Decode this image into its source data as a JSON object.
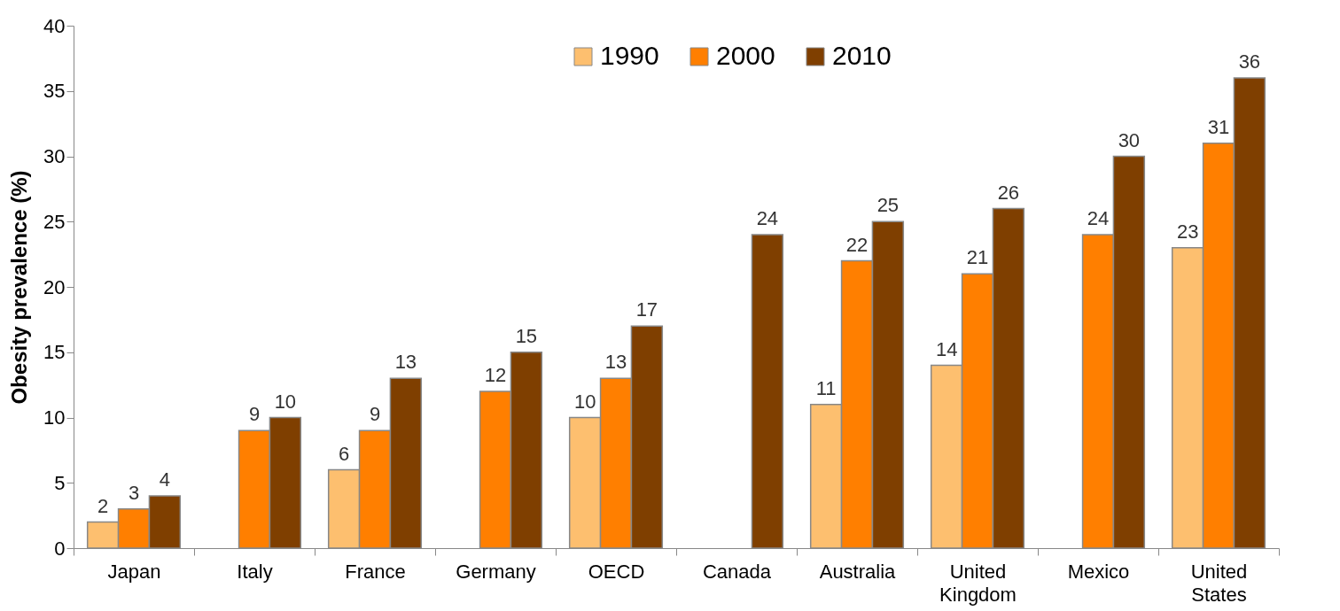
{
  "chart_data": {
    "type": "bar",
    "ylabel": "Obesity prevalence (%)",
    "categories": [
      "Japan",
      "Italy",
      "France",
      "Germany",
      "OECD",
      "Canada",
      "Australia",
      "United Kingdom",
      "Mexico",
      "United States"
    ],
    "series": [
      {
        "name": "1990",
        "color": "#fdbf6f",
        "values": [
          2,
          null,
          6,
          null,
          10,
          null,
          11,
          14,
          null,
          23
        ]
      },
      {
        "name": "2000",
        "color": "#ff7f00",
        "values": [
          3,
          9,
          9,
          12,
          13,
          null,
          22,
          21,
          24,
          31
        ]
      },
      {
        "name": "2010",
        "color": "#7f3f00",
        "values": [
          4,
          10,
          13,
          15,
          17,
          24,
          25,
          26,
          30,
          36
        ]
      }
    ],
    "ylim": [
      0,
      40
    ],
    "yticks": [
      0,
      5,
      10,
      15,
      20,
      25,
      30,
      35,
      40
    ],
    "grid": false,
    "legend": "top",
    "data_labels": true
  }
}
